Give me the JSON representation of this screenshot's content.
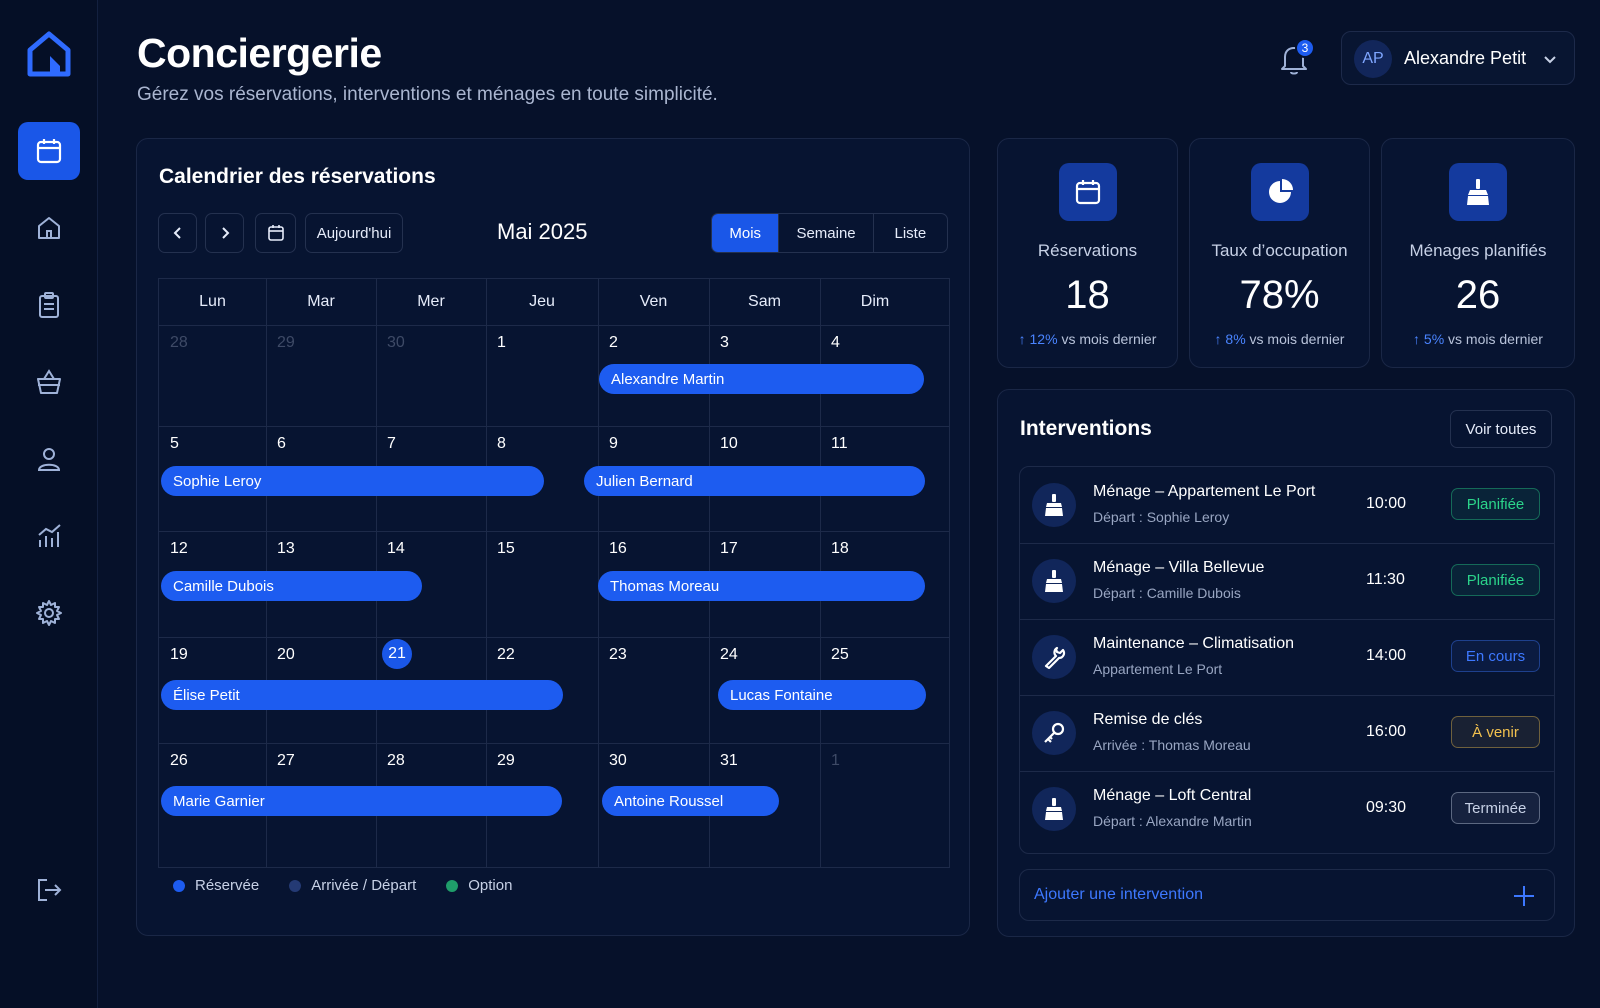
{
  "app": {
    "title": "Conciergerie",
    "subtitle": "Gérez vos réservations, interventions et ménages en toute simplicité."
  },
  "sidebar": {
    "items": [
      {
        "icon": "calendar-icon",
        "active": true
      },
      {
        "icon": "home-icon",
        "active": false
      },
      {
        "icon": "clipboard-icon",
        "active": false
      },
      {
        "icon": "basket-icon",
        "active": false
      },
      {
        "icon": "user-icon",
        "active": false
      },
      {
        "icon": "analytics-icon",
        "active": false
      },
      {
        "icon": "gear-icon",
        "active": false
      }
    ],
    "logout_icon": "logout-icon"
  },
  "header": {
    "notification_count": "3",
    "user": {
      "initials": "AP",
      "name": "Alexandre Petit"
    }
  },
  "calendar": {
    "title": "Calendrier des réservations",
    "today_label": "Aujourd'hui",
    "month_label": "Mai 2025",
    "views": [
      "Mois",
      "Semaine",
      "Liste"
    ],
    "active_view": "Mois",
    "weekdays": [
      "Lun",
      "Mar",
      "Mer",
      "Jeu",
      "Ven",
      "Sam",
      "Dim"
    ],
    "weeks": [
      [
        "28",
        "29",
        "30",
        "1",
        "2",
        "3",
        "4"
      ],
      [
        "5",
        "6",
        "7",
        "8",
        "9",
        "10",
        "11"
      ],
      [
        "12",
        "13",
        "14",
        "15",
        "16",
        "17",
        "18"
      ],
      [
        "19",
        "20",
        "21",
        "22",
        "23",
        "24",
        "25"
      ],
      [
        "26",
        "27",
        "28",
        "29",
        "30",
        "31",
        "1"
      ]
    ],
    "muted_days": [
      "0-0",
      "0-1",
      "0-2",
      "4-6"
    ],
    "today": "21",
    "events": [
      {
        "name": "Alexandre Martin"
      },
      {
        "name": "Sophie Leroy"
      },
      {
        "name": "Julien Bernard"
      },
      {
        "name": "Camille Dubois"
      },
      {
        "name": "Thomas Moreau"
      },
      {
        "name": "Élise Petit"
      },
      {
        "name": "Lucas Fontaine"
      },
      {
        "name": "Marie Garnier"
      },
      {
        "name": "Antoine Roussel"
      }
    ],
    "legend": [
      {
        "label": "Réservée",
        "color": "#1d5cf0"
      },
      {
        "label": "Arrivée / Départ",
        "color": "#243a74"
      },
      {
        "label": "Option",
        "color": "#1f9d6a"
      }
    ]
  },
  "stats": [
    {
      "icon": "calendar-icon",
      "label": "Réservations",
      "value": "18",
      "delta_pct": "12%",
      "delta_text": "vs mois dernier"
    },
    {
      "icon": "pie-chart-icon",
      "label": "Taux d’occupation",
      "value": "78%",
      "delta_pct": "8%",
      "delta_text": "vs mois dernier"
    },
    {
      "icon": "cleaning-icon",
      "label": "Ménages planifiés",
      "value": "26",
      "delta_pct": "5%",
      "delta_text": "vs mois dernier"
    }
  ],
  "interventions": {
    "title": "Interventions",
    "see_all": "Voir toutes",
    "items": [
      {
        "icon": "cleaning-icon",
        "name": "Ménage – Appartement Le Port",
        "sub": "Départ : Sophie Leroy",
        "time": "10:00",
        "status": "Planifiée",
        "status_color": "#2bd48a"
      },
      {
        "icon": "cleaning-icon",
        "name": "Ménage – Villa Bellevue",
        "sub": "Départ : Camille Dubois",
        "time": "11:30",
        "status": "Planifiée",
        "status_color": "#2bd48a"
      },
      {
        "icon": "wrench-icon",
        "name": "Maintenance – Climatisation",
        "sub": "Appartement Le Port",
        "time": "14:00",
        "status": "En cours",
        "status_color": "#3d78ff"
      },
      {
        "icon": "key-icon",
        "name": "Remise de clés",
        "sub": "Arrivée : Thomas Moreau",
        "time": "16:00",
        "status": "À venir",
        "status_color": "#f2c14e"
      },
      {
        "icon": "cleaning-icon",
        "name": "Ménage – Loft Central",
        "sub": "Départ : Alexandre Martin",
        "time": "09:30",
        "status": "Terminée",
        "status_color": "#c7d1e6"
      }
    ],
    "add_label": "Ajouter une intervention"
  }
}
